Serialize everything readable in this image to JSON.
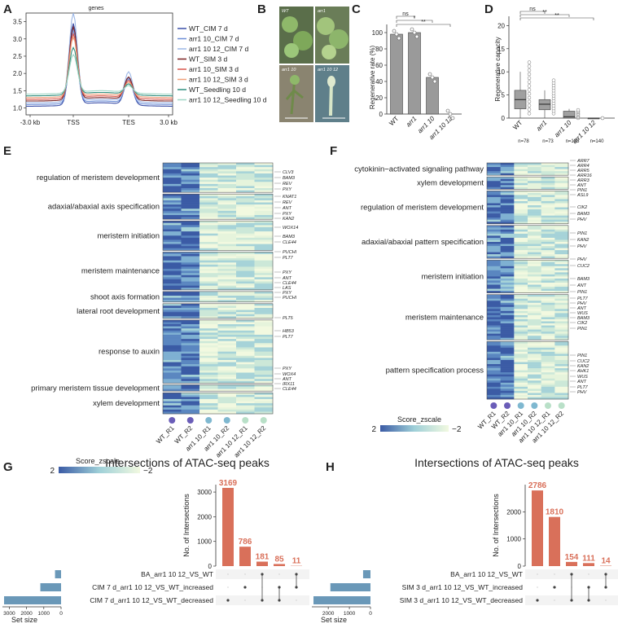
{
  "panels": [
    "A",
    "B",
    "C",
    "D",
    "E",
    "F",
    "G",
    "H"
  ],
  "panelA": {
    "title": "genes",
    "yticks": [
      "3.5",
      "3.0",
      "2.5",
      "2.0",
      "1.5",
      "1.0"
    ],
    "xticks": [
      "-3.0 kb",
      "TSS",
      "TES",
      "3.0 kb"
    ],
    "legend": [
      {
        "name": "WT_CIM 7 d",
        "color": "#3a4fa8"
      },
      {
        "name": "arr1 10_CIM 7 d",
        "color": "#6d8ed6"
      },
      {
        "name": "arr1 10 12_CIM 7 d",
        "color": "#9cb7e6"
      },
      {
        "name": "WT_SIM 3 d",
        "color": "#7a2020"
      },
      {
        "name": "arr1 10_SIM 3 d",
        "color": "#d8554a"
      },
      {
        "name": "arr1 10 12_SIM 3 d",
        "color": "#f0a07a"
      },
      {
        "name": "WT_Seedling 10 d",
        "color": "#2f8f7f"
      },
      {
        "name": "arr1 10 12_Seedling 10 d",
        "color": "#9fd6c5"
      }
    ]
  },
  "panelB": {
    "photos": [
      "WT",
      "arr1",
      "arr1 10",
      "arr1 10 12"
    ]
  },
  "panelC": {
    "ylabel": "Regenerative rate (%)",
    "yticks": [
      "0",
      "20",
      "40",
      "60",
      "80",
      "100"
    ],
    "sig": [
      "ns",
      "*",
      "**"
    ]
  },
  "panelD": {
    "ylabel": "Regenerative capacity",
    "yticks": [
      "0",
      "5",
      "10",
      "15",
      "20"
    ],
    "sig": [
      "ns",
      "**",
      "**"
    ],
    "ns": [
      "n=78",
      "n=73",
      "n=103",
      "n=140"
    ]
  },
  "panelE": {
    "terms": [
      "regulation of meristem development",
      "adaxial/abaxial axis specification",
      "meristem initiation",
      "meristem maintenance",
      "shoot axis formation",
      "lateral root development",
      "response to auxin",
      "primary meristem tissue development",
      "xylem development"
    ],
    "genes": [
      "CLV3",
      "BAM3",
      "REV",
      "PXY",
      "KNAT1",
      "REV",
      "ANT",
      "PXY",
      "KAN2",
      "WOX14",
      "BAM3",
      "CLE44",
      "PUCHI",
      "PLT7",
      "PXY",
      "ANT",
      "CLE44",
      "LAS",
      "PXY",
      "PUCHI",
      "PLT5",
      "HB53",
      "PLT7",
      "PXY",
      "WOX4",
      "ANT",
      "IRX11",
      "CLE44"
    ],
    "samples": [
      "WT_R1",
      "WT_R2",
      "arr1 10_R1",
      "arr1 10_R2",
      "arr1 10 12_R1",
      "arr1 10 12_R2"
    ],
    "scale_label": "Score_zscale",
    "scale_min": "2",
    "scale_max": "−2"
  },
  "panelF": {
    "terms": [
      "cytokinin−activated signaling pathway",
      "xylem development",
      "regulation of meristem development",
      "adaxial/abaxial pattern specification",
      "meristem initiation",
      "meristem maintenance",
      "pattern specification process"
    ],
    "genes": [
      "ARR7",
      "ARR4",
      "ARR5",
      "ARR16",
      "ARR3",
      "ANT",
      "PIN1",
      "ASL9",
      "CIK2",
      "BAM3",
      "PHV",
      "PIN1",
      "KAN2",
      "PHV",
      "PHV",
      "CUC2",
      "BAM3",
      "ANT",
      "PIN1",
      "PLT7",
      "PHV",
      "ANT",
      "WUS",
      "BAM3",
      "CIK2",
      "PIN1",
      "PIN1",
      "CUC2",
      "KAN2",
      "AHK1",
      "WUS",
      "ANT",
      "PLT7",
      "PHV"
    ],
    "samples": [
      "WT_R1",
      "WT_R2",
      "arr1 10_R1",
      "arr1 10_R2",
      "arr1 10 12_R1",
      "arr1 10 12_R2"
    ],
    "scale_label": "Score_zscale",
    "scale_min": "2",
    "scale_max": "−2"
  },
  "chart_data": [
    {
      "type": "bar",
      "panel": "C",
      "categories": [
        "WT",
        "arr1",
        "arr1 10",
        "arr1 10 12"
      ],
      "values": [
        98,
        100,
        45,
        0
      ],
      "ylabel": "Regenerative rate (%)",
      "ylim": [
        0,
        110
      ]
    },
    {
      "type": "bar",
      "panel": "G",
      "title": "Intersections of ATAC-seq peaks",
      "ylabel": "No. of Intersections",
      "values": [
        3169,
        786,
        181,
        85,
        11
      ],
      "ylim": [
        0,
        3300
      ],
      "yticks": [
        "0",
        "1000",
        "2000",
        "3000"
      ],
      "sets": [
        "BA_arr1 10 12_VS_WT",
        "CIM 7 d_arr1 10 12_VS_WT_increased",
        "CIM 7 d_arr1 10 12_VS_WT_decreased"
      ],
      "set_sizes": [
        350,
        1200,
        3300
      ],
      "set_xticks": [
        "3000",
        "2000",
        "1000",
        "0"
      ],
      "set_xlabel": "Set size"
    },
    {
      "type": "bar",
      "panel": "H",
      "title": "Intersections of ATAC-seq peaks",
      "ylabel": "No. of Intersections",
      "values": [
        2786,
        1810,
        154,
        111,
        14
      ],
      "ylim": [
        0,
        3000
      ],
      "yticks": [
        "0",
        "1000",
        "2000"
      ],
      "sets": [
        "BA_arr1 10 12_VS_WT",
        "SIM 3 d_arr1 10 12_VS_WT_increased",
        "SIM 3 d_arr1 10 12_VS_WT_decreased"
      ],
      "set_sizes": [
        350,
        1900,
        2700
      ],
      "set_xticks": [
        "2000",
        "1000",
        "0"
      ],
      "set_xlabel": "Set size"
    }
  ]
}
